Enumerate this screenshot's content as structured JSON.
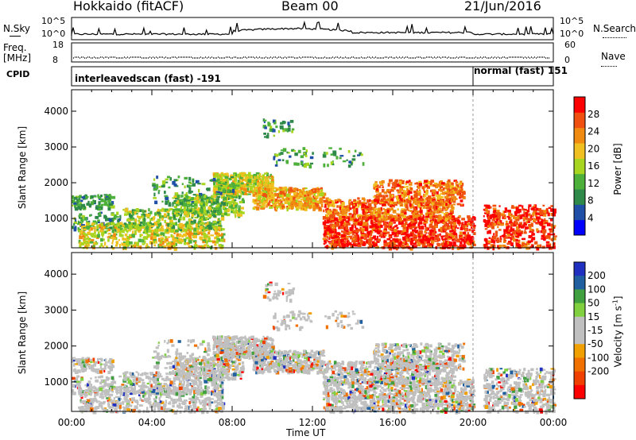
{
  "header": {
    "title": "Hokkaido (fitACF)",
    "beam": "Beam 00",
    "date": "21/Jun/2016"
  },
  "nsky": {
    "label": "N.Sky",
    "ticks_left": [
      "10^5",
      "10^0"
    ],
    "right_label": "N.Search",
    "ticks_right": [
      "10^5",
      "10^0"
    ]
  },
  "freq": {
    "label_line1": "Freq.",
    "label_line2": "[MHz]",
    "ticks_left": [
      "18",
      "8"
    ],
    "right_label": "Nave",
    "ticks_right": [
      "60",
      "0"
    ]
  },
  "cpid": {
    "label": "CPID",
    "segments": [
      {
        "text": "interleavedscan (fast) -191",
        "start_hour": 0,
        "end_hour": 20
      },
      {
        "text": "normal (fast) 151",
        "start_hour": 20,
        "end_hour": 24
      }
    ]
  },
  "colors": {
    "power": [
      "#0000ff",
      "#1f4fa6",
      "#2f8a4a",
      "#4db03a",
      "#a8d520",
      "#f0c020",
      "#f08a10",
      "#f05010",
      "#ff0000"
    ],
    "velocity": [
      "#ff0000",
      "#f04000",
      "#f07000",
      "#f0a000",
      "#c0c0c0",
      "#c0c0c0",
      "#80d040",
      "#40a040",
      "#2060a0",
      "#2030c0"
    ]
  },
  "chart_data": [
    {
      "type": "heatmap",
      "name": "power",
      "ylabel": "Slant Range [km]",
      "yticks": [
        "1000",
        "2000",
        "3000",
        "4000"
      ],
      "ylim": [
        180,
        4600
      ],
      "xlim": [
        0,
        24
      ],
      "colorbar_label": "Power [dB]",
      "colorbar_ticks": [
        "4",
        "8",
        "12",
        "16",
        "20",
        "24",
        "28"
      ],
      "colorbar_range": [
        0,
        32
      ]
    },
    {
      "type": "heatmap",
      "name": "velocity",
      "xlabel": "Time UT",
      "xticks": [
        "00:00",
        "04:00",
        "08:00",
        "12:00",
        "16:00",
        "20:00",
        "00:00"
      ],
      "ylabel": "Slant Range [km]",
      "yticks": [
        "1000",
        "2000",
        "3000",
        "4000"
      ],
      "ylim": [
        180,
        4600
      ],
      "xlim": [
        0,
        24
      ],
      "colorbar_label": "Velocity [m s^-1]",
      "colorbar_ticks": [
        "200",
        "100",
        "50",
        "15",
        "-15",
        "-50",
        "-100",
        "-200"
      ]
    }
  ]
}
